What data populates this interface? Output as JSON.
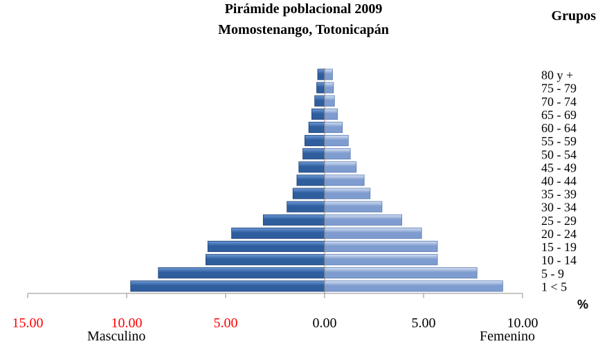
{
  "chart_data": {
    "type": "bar",
    "title": "Pirámide poblacional 2009",
    "subtitle": "Momostenango, Totonicapán",
    "groups_label": "Grupos",
    "unit_label": "%",
    "categories": [
      "1 < 5",
      "5 - 9",
      "10 - 14",
      "15 - 19",
      "20 - 24",
      "25 - 29",
      "30 - 34",
      "35 - 39",
      "40 - 44",
      "45 - 49",
      "50 - 54",
      "55 - 59",
      "60 - 64",
      "65 - 69",
      "70 - 74",
      "75 - 79",
      "80 y +"
    ],
    "series": [
      {
        "name": "Masculino",
        "values": [
          9.8,
          8.4,
          6.0,
          5.9,
          4.7,
          3.1,
          1.9,
          1.6,
          1.4,
          1.3,
          1.1,
          1.0,
          0.8,
          0.65,
          0.5,
          0.4,
          0.35
        ]
      },
      {
        "name": "Femenino",
        "values": [
          9.0,
          7.7,
          5.7,
          5.7,
          4.9,
          3.9,
          2.9,
          2.3,
          2.0,
          1.6,
          1.3,
          1.2,
          0.9,
          0.65,
          0.5,
          0.45,
          0.4
        ]
      }
    ],
    "xlim": [
      -15,
      10
    ],
    "tick_values": [
      -15,
      -10,
      -5,
      0,
      5,
      10
    ],
    "tick_labels": [
      "15.00",
      "10.00",
      "5.00",
      "0.00",
      "5.00",
      "10.00"
    ],
    "tick_colors": [
      "#ff0000",
      "#ff0000",
      "#ff0000",
      "#000000",
      "#000000",
      "#000000"
    ],
    "grid": false
  },
  "colors": {
    "male_dark": "#2f5e9e",
    "male_light": "#6d9ad8",
    "female_dark": "#7e9ccf",
    "female_light": "#d6e1f3"
  }
}
